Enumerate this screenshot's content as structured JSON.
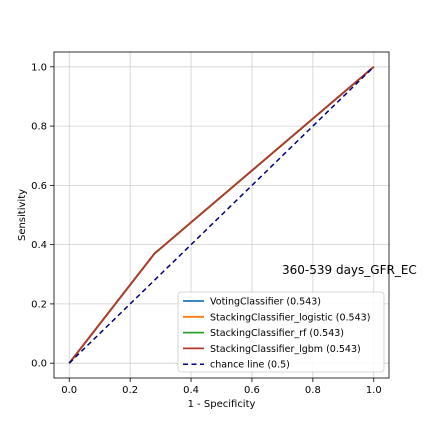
{
  "chart_data": {
    "type": "line",
    "xlabel": "1 - Specificity",
    "ylabel": "Sensitivity",
    "xlim": [
      -0.05,
      1.05
    ],
    "ylim": [
      -0.05,
      1.05
    ],
    "xticks": [
      "0.0",
      "0.2",
      "0.4",
      "0.6",
      "0.8",
      "1.0"
    ],
    "yticks": [
      "0.0",
      "0.2",
      "0.4",
      "0.6",
      "0.8",
      "1.0"
    ],
    "grid": true,
    "legend_position": "bottom-right",
    "annotation": "360-539 days_GFR_EC",
    "series": [
      {
        "name": "VotingClassifier (0.543)",
        "color": "#1f77b4",
        "dash": "solid",
        "x": [
          0.0,
          0.28,
          1.0
        ],
        "y": [
          0.0,
          0.37,
          1.0
        ]
      },
      {
        "name": "StackingClassifier_logistic (0.543)",
        "color": "#ff7f0e",
        "dash": "solid",
        "x": [
          0.0,
          0.28,
          1.0
        ],
        "y": [
          0.0,
          0.37,
          1.0
        ]
      },
      {
        "name": "StackingClassifier_rf (0.543)",
        "color": "#2ca02c",
        "dash": "solid",
        "x": [
          0.0,
          0.28,
          1.0
        ],
        "y": [
          0.0,
          0.37,
          1.0
        ]
      },
      {
        "name": "StackingClassifier_lgbm (0.543)",
        "color": "#b03a2e",
        "dash": "solid",
        "x": [
          0.0,
          0.28,
          1.0
        ],
        "y": [
          0.0,
          0.37,
          1.0
        ]
      },
      {
        "name": "chance line (0.5)",
        "color": "#000080",
        "dash": "dashed",
        "x": [
          0.0,
          1.0
        ],
        "y": [
          0.0,
          1.0
        ]
      }
    ]
  }
}
